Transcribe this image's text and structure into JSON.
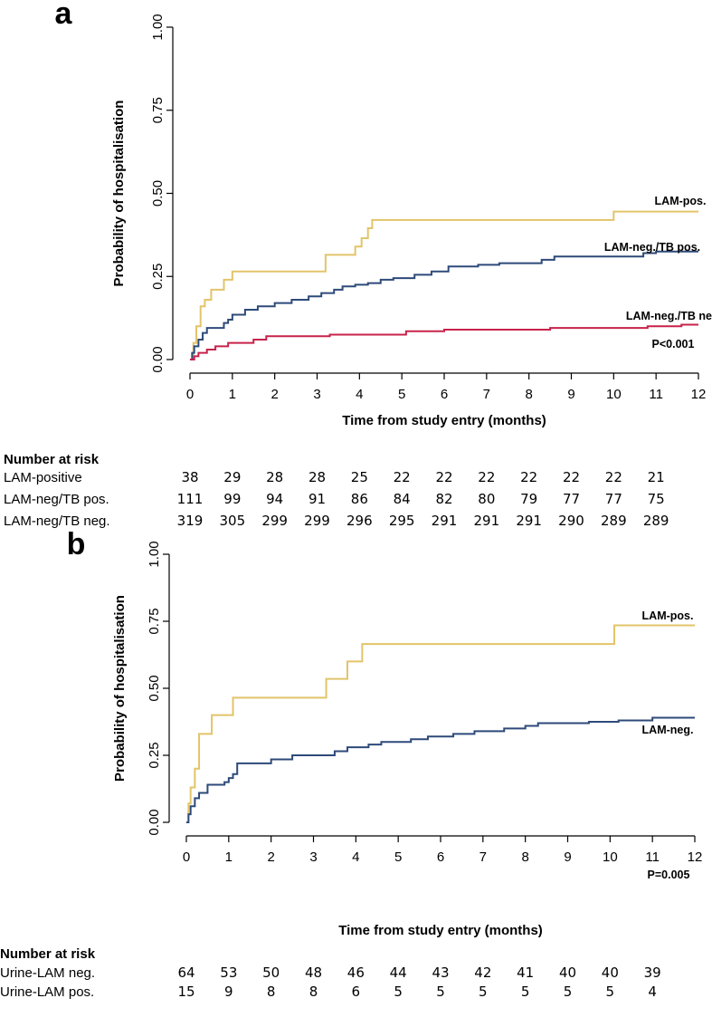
{
  "chart_data": [
    {
      "type": "line",
      "panel_label": "a",
      "xlabel": "Time from study entry (months)",
      "ylabel": "Probability of hospitalisation",
      "xlim": [
        0,
        12
      ],
      "ylim": [
        0,
        1
      ],
      "xticks": [
        "0",
        "1",
        "2",
        "3",
        "4",
        "5",
        "6",
        "7",
        "8",
        "9",
        "10",
        "11",
        "12"
      ],
      "yticks": [
        "0.00",
        "0.25",
        "0.50",
        "0.75",
        "1.00"
      ],
      "grid": false,
      "pvalue": "P<0.001",
      "series": [
        {
          "name": "LAM-pos.",
          "color": "#E2C46A",
          "x": [
            0,
            0.08,
            0.15,
            0.25,
            0.35,
            0.5,
            0.8,
            1.0,
            3.2,
            3.9,
            4.05,
            4.2,
            4.3,
            10.0,
            12.0
          ],
          "y": [
            0,
            0.05,
            0.1,
            0.16,
            0.18,
            0.21,
            0.24,
            0.265,
            0.315,
            0.34,
            0.365,
            0.395,
            0.42,
            0.445,
            0.445
          ]
        },
        {
          "name": "LAM-neg./TB pos.",
          "color": "#2E4A7A",
          "x": [
            0,
            0.05,
            0.1,
            0.2,
            0.3,
            0.4,
            0.8,
            0.9,
            1.0,
            1.3,
            1.6,
            2.0,
            2.4,
            2.8,
            3.1,
            3.4,
            3.6,
            3.9,
            4.2,
            4.5,
            4.8,
            5.3,
            5.7,
            6.1,
            6.8,
            7.3,
            8.3,
            8.6,
            10.7,
            11.0,
            12.0
          ],
          "y": [
            0,
            0.02,
            0.04,
            0.06,
            0.08,
            0.095,
            0.11,
            0.12,
            0.135,
            0.15,
            0.16,
            0.17,
            0.18,
            0.19,
            0.2,
            0.21,
            0.22,
            0.225,
            0.23,
            0.24,
            0.245,
            0.255,
            0.265,
            0.28,
            0.285,
            0.29,
            0.3,
            0.31,
            0.32,
            0.325,
            0.325
          ]
        },
        {
          "name": "LAM-neg./TB neg.",
          "color": "#C8224A",
          "x": [
            0,
            0.1,
            0.2,
            0.4,
            0.6,
            0.9,
            1.5,
            1.8,
            3.3,
            5.1,
            6.0,
            8.5,
            10.8,
            11.6,
            12.0
          ],
          "y": [
            0,
            0.01,
            0.02,
            0.03,
            0.04,
            0.05,
            0.06,
            0.07,
            0.075,
            0.085,
            0.09,
            0.095,
            0.1,
            0.105,
            0.105
          ]
        }
      ],
      "risk_table": {
        "heading": "Number at risk",
        "rows": [
          {
            "label": "LAM-positive",
            "values": [
              "38",
              "29",
              "28",
              "28",
              "25",
              "22",
              "22",
              "22",
              "22",
              "22",
              "22",
              "21"
            ]
          },
          {
            "label": "LAM-neg/TB pos.",
            "values": [
              "111",
              "99",
              "94",
              "91",
              "86",
              "84",
              "82",
              "80",
              "79",
              "77",
              "77",
              "75"
            ]
          },
          {
            "label": "LAM-neg/TB neg.",
            "values": [
              "319",
              "305",
              "299",
              "299",
              "296",
              "295",
              "291",
              "291",
              "291",
              "290",
              "289",
              "289"
            ]
          }
        ]
      }
    },
    {
      "type": "line",
      "panel_label": "b",
      "xlabel": "Time from study entry (months)",
      "ylabel": "Probability of hospitalisation",
      "xlim": [
        0,
        12
      ],
      "ylim": [
        0,
        1
      ],
      "xticks": [
        "0",
        "1",
        "2",
        "3",
        "4",
        "5",
        "6",
        "7",
        "8",
        "9",
        "10",
        "11",
        "12"
      ],
      "yticks": [
        "0.00",
        "0.25",
        "0.50",
        "0.75",
        "1.00"
      ],
      "grid": false,
      "pvalue": "P=0.005",
      "series": [
        {
          "name": "LAM-pos.",
          "color": "#E2C46A",
          "x": [
            0,
            0.05,
            0.1,
            0.2,
            0.3,
            0.6,
            1.1,
            3.3,
            3.8,
            4.15,
            10.1,
            12.0
          ],
          "y": [
            0,
            0.07,
            0.13,
            0.2,
            0.33,
            0.4,
            0.465,
            0.535,
            0.6,
            0.665,
            0.735,
            0.735
          ]
        },
        {
          "name": "LAM-neg.",
          "color": "#2E4A7A",
          "x": [
            0,
            0.05,
            0.1,
            0.2,
            0.3,
            0.5,
            0.9,
            1.0,
            1.1,
            1.2,
            2.0,
            2.5,
            3.5,
            3.8,
            4.3,
            4.6,
            5.3,
            5.7,
            6.3,
            6.8,
            7.5,
            8.0,
            8.3,
            9.5,
            10.2,
            11.0,
            12.0
          ],
          "y": [
            0,
            0.03,
            0.06,
            0.09,
            0.11,
            0.14,
            0.15,
            0.165,
            0.18,
            0.22,
            0.235,
            0.25,
            0.265,
            0.28,
            0.29,
            0.3,
            0.31,
            0.32,
            0.33,
            0.34,
            0.35,
            0.36,
            0.37,
            0.375,
            0.38,
            0.39,
            0.39
          ]
        }
      ],
      "risk_table": {
        "heading": "Number at risk",
        "rows": [
          {
            "label": "Urine-LAM neg.",
            "values": [
              "64",
              "53",
              "50",
              "48",
              "46",
              "44",
              "43",
              "42",
              "41",
              "40",
              "40",
              "39"
            ]
          },
          {
            "label": "Urine-LAM pos.",
            "values": [
              "15",
              "9",
              "8",
              "8",
              "6",
              "5",
              "5",
              "5",
              "5",
              "5",
              "5",
              "4"
            ]
          }
        ]
      }
    }
  ]
}
